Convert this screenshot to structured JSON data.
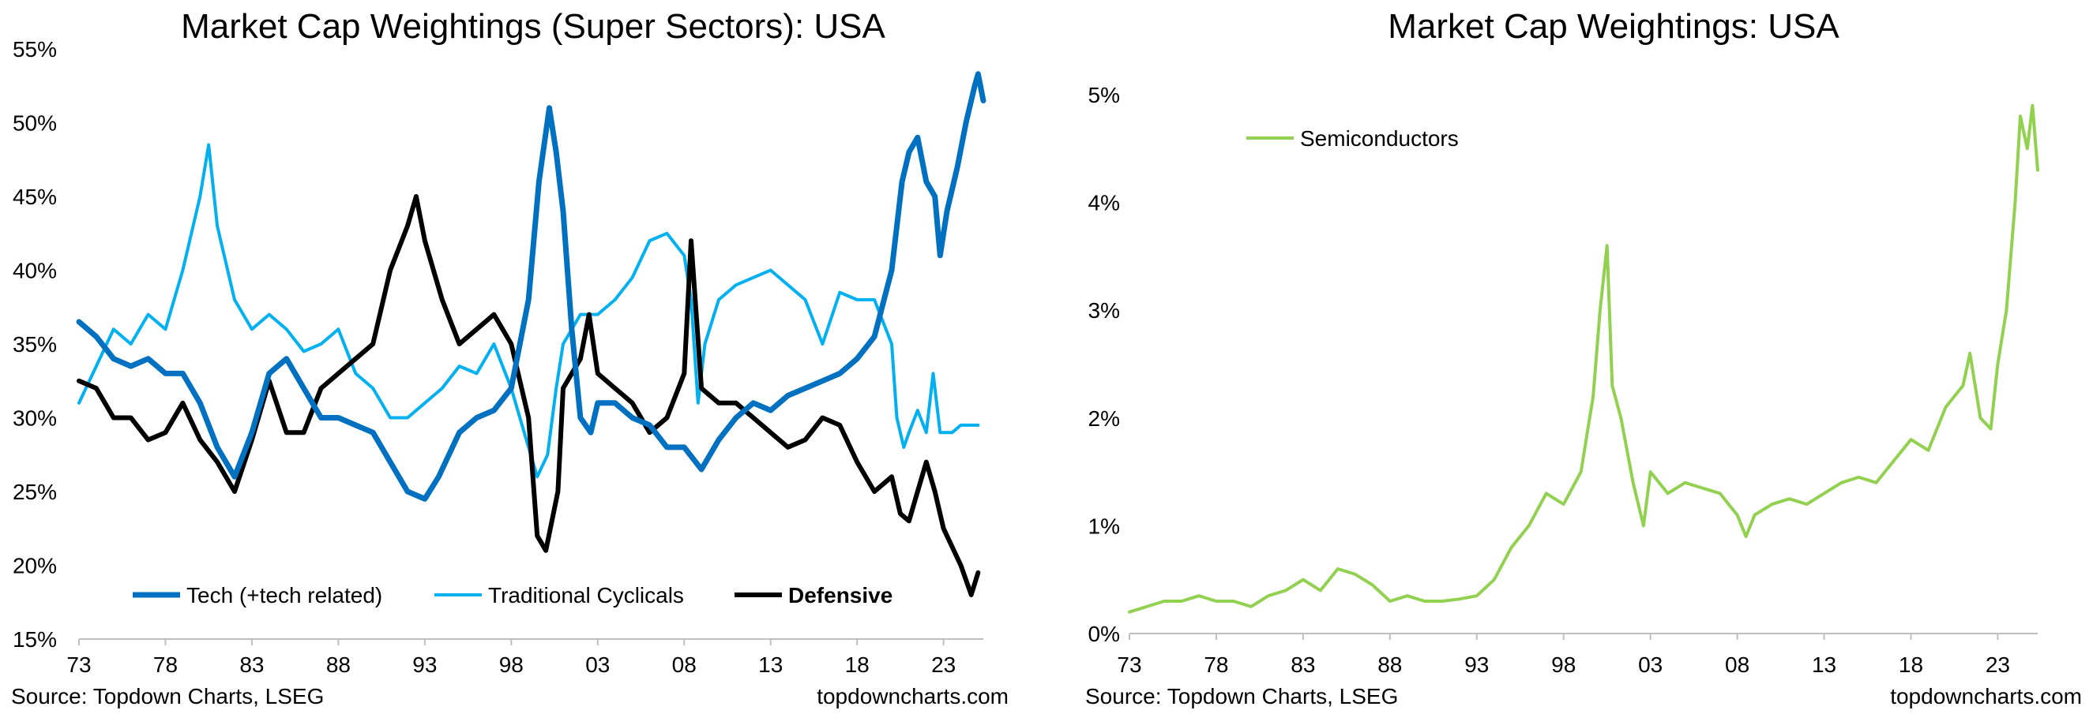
{
  "chart_data": [
    {
      "type": "line",
      "title": "Market Cap Weightings (Super Sectors): USA",
      "source": "Source: Topdown Charts, LSEG",
      "watermark": "topdowncharts.com",
      "x_ticks": [
        "73",
        "78",
        "83",
        "88",
        "93",
        "98",
        "03",
        "08",
        "13",
        "18",
        "23"
      ],
      "x_range": [
        1973,
        2025.3
      ],
      "y_ticks": [
        "15%",
        "20%",
        "25%",
        "30%",
        "35%",
        "40%",
        "45%",
        "50%",
        "55%"
      ],
      "ylim": [
        15,
        55
      ],
      "series": [
        {
          "name": "Tech (+tech related)",
          "color": "#0070C0",
          "bold": false,
          "width": 7,
          "points": [
            [
              1973,
              36.5
            ],
            [
              1974,
              35.5
            ],
            [
              1975,
              34
            ],
            [
              1976,
              33.5
            ],
            [
              1977,
              34
            ],
            [
              1978,
              33
            ],
            [
              1979,
              33
            ],
            [
              1980,
              31
            ],
            [
              1981,
              28
            ],
            [
              1982,
              26
            ],
            [
              1983,
              29
            ],
            [
              1984,
              33
            ],
            [
              1985,
              34
            ],
            [
              1986,
              32
            ],
            [
              1987,
              30
            ],
            [
              1988,
              30
            ],
            [
              1989,
              29.5
            ],
            [
              1990,
              29
            ],
            [
              1991,
              27
            ],
            [
              1992,
              25
            ],
            [
              1993,
              24.5
            ],
            [
              1993.8,
              26
            ],
            [
              1995,
              29
            ],
            [
              1996,
              30
            ],
            [
              1997,
              30.5
            ],
            [
              1998,
              32
            ],
            [
              1999,
              38
            ],
            [
              1999.6,
              46
            ],
            [
              2000.2,
              51
            ],
            [
              2000.6,
              48
            ],
            [
              2001,
              44
            ],
            [
              2001.5,
              36
            ],
            [
              2002,
              30
            ],
            [
              2002.6,
              29
            ],
            [
              2003,
              31
            ],
            [
              2004,
              31
            ],
            [
              2005,
              30
            ],
            [
              2006,
              29.5
            ],
            [
              2007,
              28
            ],
            [
              2008,
              28
            ],
            [
              2009,
              26.5
            ],
            [
              2010,
              28.5
            ],
            [
              2011,
              30
            ],
            [
              2012,
              31
            ],
            [
              2013,
              30.5
            ],
            [
              2014,
              31.5
            ],
            [
              2015,
              32
            ],
            [
              2016,
              32.5
            ],
            [
              2017,
              33
            ],
            [
              2018,
              34
            ],
            [
              2019,
              35.5
            ],
            [
              2020,
              40
            ],
            [
              2020.6,
              46
            ],
            [
              2021,
              48
            ],
            [
              2021.5,
              49
            ],
            [
              2022,
              46
            ],
            [
              2022.5,
              45
            ],
            [
              2022.8,
              41
            ],
            [
              2023.2,
              44
            ],
            [
              2023.8,
              47
            ],
            [
              2024.3,
              50
            ],
            [
              2024.8,
              52.5
            ],
            [
              2025,
              53.3
            ],
            [
              2025.3,
              51.5
            ]
          ]
        },
        {
          "name": "Traditional Cyclicals",
          "color": "#00B0F0",
          "bold": false,
          "width": 4,
          "points": [
            [
              1973,
              31
            ],
            [
              1974,
              33.5
            ],
            [
              1975,
              36
            ],
            [
              1976,
              35
            ],
            [
              1977,
              37
            ],
            [
              1978,
              36
            ],
            [
              1979,
              40
            ],
            [
              1980,
              45
            ],
            [
              1980.5,
              48.5
            ],
            [
              1981,
              43
            ],
            [
              1982,
              38
            ],
            [
              1983,
              36
            ],
            [
              1984,
              37
            ],
            [
              1985,
              36
            ],
            [
              1986,
              34.5
            ],
            [
              1987,
              35
            ],
            [
              1988,
              36
            ],
            [
              1989,
              33
            ],
            [
              1990,
              32
            ],
            [
              1991,
              30
            ],
            [
              1992,
              30
            ],
            [
              1993,
              31
            ],
            [
              1994,
              32
            ],
            [
              1995,
              33.5
            ],
            [
              1996,
              33
            ],
            [
              1997,
              35
            ],
            [
              1998,
              32
            ],
            [
              1999,
              28
            ],
            [
              1999.5,
              26
            ],
            [
              2000.1,
              27.5
            ],
            [
              2000.6,
              32
            ],
            [
              2001,
              35
            ],
            [
              2002,
              37
            ],
            [
              2003,
              37
            ],
            [
              2004,
              38
            ],
            [
              2005,
              39.5
            ],
            [
              2006,
              42
            ],
            [
              2007,
              42.5
            ],
            [
              2008,
              41
            ],
            [
              2008.4,
              38
            ],
            [
              2008.8,
              31
            ],
            [
              2009.2,
              35
            ],
            [
              2010,
              38
            ],
            [
              2011,
              39
            ],
            [
              2012,
              39.5
            ],
            [
              2013,
              40
            ],
            [
              2014,
              39
            ],
            [
              2015,
              38
            ],
            [
              2016,
              35
            ],
            [
              2017,
              38.5
            ],
            [
              2018,
              38
            ],
            [
              2019,
              38
            ],
            [
              2020,
              35
            ],
            [
              2020.3,
              30
            ],
            [
              2020.7,
              28
            ],
            [
              2021,
              29
            ],
            [
              2021.5,
              30.5
            ],
            [
              2022,
              29
            ],
            [
              2022.4,
              33
            ],
            [
              2022.8,
              29
            ],
            [
              2023.5,
              29
            ],
            [
              2024,
              29.5
            ],
            [
              2025,
              29.5
            ]
          ]
        },
        {
          "name": "Defensive",
          "color": "#000000",
          "bold": true,
          "width": 6,
          "points": [
            [
              1973,
              32.5
            ],
            [
              1974,
              32
            ],
            [
              1975,
              30
            ],
            [
              1976,
              30
            ],
            [
              1977,
              28.5
            ],
            [
              1978,
              29
            ],
            [
              1979,
              31
            ],
            [
              1980,
              28.5
            ],
            [
              1981,
              27
            ],
            [
              1982,
              25
            ],
            [
              1983,
              28.5
            ],
            [
              1984,
              32.5
            ],
            [
              1985,
              29
            ],
            [
              1986,
              29
            ],
            [
              1987,
              32
            ],
            [
              1988,
              33
            ],
            [
              1989,
              34
            ],
            [
              1990,
              35
            ],
            [
              1991,
              40
            ],
            [
              1992,
              43
            ],
            [
              1992.5,
              45
            ],
            [
              1993,
              42
            ],
            [
              1994,
              38
            ],
            [
              1995,
              35
            ],
            [
              1996,
              36
            ],
            [
              1997,
              37
            ],
            [
              1998,
              35
            ],
            [
              1999,
              30
            ],
            [
              1999.5,
              22
            ],
            [
              2000,
              21
            ],
            [
              2000.7,
              25
            ],
            [
              2001,
              32
            ],
            [
              2002,
              34
            ],
            [
              2002.5,
              37
            ],
            [
              2003,
              33
            ],
            [
              2004,
              32
            ],
            [
              2005,
              31
            ],
            [
              2006,
              29
            ],
            [
              2007,
              30
            ],
            [
              2008,
              33
            ],
            [
              2008.4,
              42
            ],
            [
              2009,
              32
            ],
            [
              2010,
              31
            ],
            [
              2011,
              31
            ],
            [
              2012,
              30
            ],
            [
              2013,
              29
            ],
            [
              2014,
              28
            ],
            [
              2015,
              28.5
            ],
            [
              2016,
              30
            ],
            [
              2017,
              29.5
            ],
            [
              2018,
              27
            ],
            [
              2019,
              25
            ],
            [
              2020,
              26
            ],
            [
              2020.5,
              23.5
            ],
            [
              2021,
              23
            ],
            [
              2021.5,
              25
            ],
            [
              2022,
              27
            ],
            [
              2022.5,
              25
            ],
            [
              2023,
              22.5
            ],
            [
              2024,
              20
            ],
            [
              2024.6,
              18
            ],
            [
              2025,
              19.5
            ]
          ]
        }
      ]
    },
    {
      "type": "line",
      "title": "Market Cap Weightings: USA",
      "source": "Source: Topdown Charts, LSEG",
      "watermark": "topdowncharts.com",
      "x_ticks": [
        "73",
        "78",
        "83",
        "88",
        "93",
        "98",
        "03",
        "08",
        "13",
        "18",
        "23"
      ],
      "x_range": [
        1973,
        2025.3
      ],
      "y_ticks": [
        "0%",
        "1%",
        "2%",
        "3%",
        "4%",
        "5%"
      ],
      "ylim": [
        0,
        5
      ],
      "series": [
        {
          "name": "Semiconductors",
          "color": "#92D050",
          "bold": false,
          "width": 4,
          "points": [
            [
              1973,
              0.2
            ],
            [
              1974,
              0.25
            ],
            [
              1975,
              0.3
            ],
            [
              1976,
              0.3
            ],
            [
              1977,
              0.35
            ],
            [
              1978,
              0.3
            ],
            [
              1979,
              0.3
            ],
            [
              1980,
              0.25
            ],
            [
              1981,
              0.35
            ],
            [
              1982,
              0.4
            ],
            [
              1983,
              0.5
            ],
            [
              1984,
              0.4
            ],
            [
              1985,
              0.6
            ],
            [
              1986,
              0.55
            ],
            [
              1987,
              0.45
            ],
            [
              1988,
              0.3
            ],
            [
              1989,
              0.35
            ],
            [
              1990,
              0.3
            ],
            [
              1991,
              0.3
            ],
            [
              1992,
              0.32
            ],
            [
              1993,
              0.35
            ],
            [
              1994,
              0.5
            ],
            [
              1995,
              0.8
            ],
            [
              1996,
              1.0
            ],
            [
              1997,
              1.3
            ],
            [
              1998,
              1.2
            ],
            [
              1999,
              1.5
            ],
            [
              1999.7,
              2.2
            ],
            [
              2000.1,
              3.0
            ],
            [
              2000.5,
              3.6
            ],
            [
              2000.8,
              2.3
            ],
            [
              2001.3,
              2.0
            ],
            [
              2002,
              1.4
            ],
            [
              2002.6,
              1.0
            ],
            [
              2003,
              1.5
            ],
            [
              2004,
              1.3
            ],
            [
              2005,
              1.4
            ],
            [
              2006,
              1.35
            ],
            [
              2007,
              1.3
            ],
            [
              2008,
              1.1
            ],
            [
              2008.5,
              0.9
            ],
            [
              2009,
              1.1
            ],
            [
              2010,
              1.2
            ],
            [
              2011,
              1.25
            ],
            [
              2012,
              1.2
            ],
            [
              2013,
              1.3
            ],
            [
              2014,
              1.4
            ],
            [
              2015,
              1.45
            ],
            [
              2016,
              1.4
            ],
            [
              2017,
              1.6
            ],
            [
              2018,
              1.8
            ],
            [
              2019,
              1.7
            ],
            [
              2020,
              2.1
            ],
            [
              2021,
              2.3
            ],
            [
              2021.4,
              2.6
            ],
            [
              2022,
              2.0
            ],
            [
              2022.6,
              1.9
            ],
            [
              2023,
              2.5
            ],
            [
              2023.5,
              3.0
            ],
            [
              2024,
              4.0
            ],
            [
              2024.3,
              4.8
            ],
            [
              2024.7,
              4.5
            ],
            [
              2025,
              4.9
            ],
            [
              2025.3,
              4.3
            ]
          ]
        }
      ]
    }
  ]
}
